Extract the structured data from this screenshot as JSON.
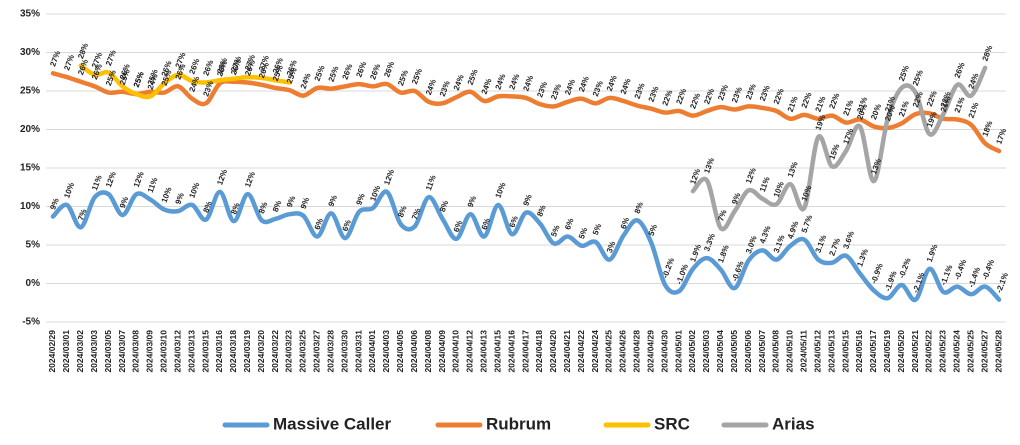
{
  "chart_data": {
    "type": "line",
    "categories": [
      "2024/02/29",
      "2024/03/01",
      "2024/03/02",
      "2024/03/03",
      "2024/03/05",
      "2024/03/07",
      "2024/03/08",
      "2024/03/09",
      "2024/03/10",
      "2024/03/12",
      "2024/03/13",
      "2024/03/15",
      "2024/03/16",
      "2024/03/18",
      "2024/03/19",
      "2024/03/20",
      "2024/03/22",
      "2024/03/23",
      "2024/03/25",
      "2024/03/27",
      "2024/03/28",
      "2024/03/30",
      "2024/03/31",
      "2024/04/01",
      "2024/04/03",
      "2024/04/05",
      "2024/04/06",
      "2024/04/08",
      "2024/04/09",
      "2024/04/10",
      "2024/04/12",
      "2024/04/13",
      "2024/04/15",
      "2024/04/16",
      "2024/04/17",
      "2024/04/18",
      "2024/04/20",
      "2024/04/21",
      "2024/04/22",
      "2024/04/24",
      "2024/04/25",
      "2024/04/26",
      "2024/04/28",
      "2024/04/29",
      "2024/04/30",
      "2024/05/01",
      "2024/05/02",
      "2024/05/03",
      "2024/05/04",
      "2024/05/05",
      "2024/05/06",
      "2024/05/07",
      "2024/05/08",
      "2024/05/10",
      "2024/05/11",
      "2024/05/12",
      "2024/05/13",
      "2024/05/15",
      "2024/05/16",
      "2024/05/17",
      "2024/05/19",
      "2024/05/20",
      "2024/05/21",
      "2024/05/22",
      "2024/05/23",
      "2024/05/24",
      "2024/05/25",
      "2024/05/27",
      "2024/05/28"
    ],
    "series": [
      {
        "name": "Massive Caller",
        "color": "#5b9bd5",
        "values": [
          8.7,
          10.2,
          7.3,
          11.2,
          11.6,
          8.9,
          11.6,
          10.9,
          9.6,
          9.4,
          10.2,
          8.3,
          11.9,
          8.1,
          11.6,
          8.2,
          8.4,
          9.0,
          8.8,
          6.1,
          9.1,
          5.9,
          9.3,
          9.8,
          11.9,
          7.7,
          7.4,
          11.2,
          8.4,
          5.8,
          9.0,
          6.1,
          10.2,
          6.4,
          9.2,
          7.8,
          5.2,
          6.1,
          4.9,
          5.4,
          3.1,
          6.2,
          8.2,
          5.3,
          -0.2,
          -1.0,
          1.9,
          3.3,
          1.8,
          -0.6,
          3.0,
          4.3,
          3.1,
          4.9,
          5.7,
          3.1,
          2.7,
          3.6,
          1.3,
          -0.9,
          -1.9,
          -0.2,
          -2.1,
          1.9,
          -1.1,
          -0.4,
          -1.4,
          -0.4,
          -2.1
        ],
        "value_labels": [
          "9%",
          "10%",
          "7%",
          "11%",
          "12%",
          "9%",
          "12%",
          "11%",
          "10%",
          "9%",
          "10%",
          "8%",
          "12%",
          "8%",
          "12%",
          "8%",
          "8%",
          "9%",
          "9%",
          "6%",
          "9%",
          "6%",
          "9%",
          "10%",
          "12%",
          "8%",
          "7%",
          "11%",
          "8%",
          "6%",
          "9%",
          "6%",
          "10%",
          "6%",
          "9%",
          "8%",
          "5%",
          "6%",
          "5%",
          "5%",
          "3%",
          "6%",
          "8%",
          "5%",
          "-0.2%",
          "-1.0%",
          "1.9%",
          "3.3%",
          "1.8%",
          "-0.6%",
          "3.0%",
          "4.3%",
          "3.1%",
          "4.9%",
          "5.7%",
          "3.1%",
          "2.7%",
          "3.6%",
          "1.3%",
          "-0.9%",
          "-1.9%",
          "-0.2%",
          "-2.1%",
          "1.9%",
          "-1.1%",
          "-0.4%",
          "-1.4%",
          "-0.4%",
          "-2.1%"
        ]
      },
      {
        "name": "Rubrum",
        "color": "#ed7d31",
        "values": [
          27.3,
          26.8,
          26.2,
          25.6,
          24.8,
          24.9,
          24.6,
          24.9,
          24.8,
          25.6,
          24.0,
          23.4,
          26.0,
          26.2,
          26.1,
          25.8,
          25.4,
          25.1,
          24.4,
          25.4,
          25.3,
          25.6,
          25.9,
          25.6,
          25.9,
          24.8,
          25.0,
          23.6,
          23.4,
          24.2,
          24.9,
          23.7,
          24.3,
          24.3,
          24.1,
          23.3,
          23.0,
          23.6,
          24.0,
          23.4,
          24.1,
          23.7,
          23.1,
          22.7,
          22.2,
          22.4,
          21.8,
          22.4,
          22.9,
          22.6,
          23.0,
          22.8,
          22.4,
          21.4,
          21.9,
          21.4,
          21.8,
          20.9,
          21.3,
          20.4,
          20.2,
          20.8,
          22.0,
          22.1,
          21.4,
          21.3,
          20.6,
          18.2,
          17.2
        ],
        "value_labels": [
          "27%",
          "27%",
          "26%",
          "26%",
          "25%",
          "25%",
          "25%",
          "25%",
          "25%",
          "26%",
          "24%",
          "23%",
          "26%",
          "26%",
          "26%",
          "26%",
          "25%",
          "25%",
          "24%",
          "25%",
          "25%",
          "26%",
          "26%",
          "26%",
          "26%",
          "25%",
          "25%",
          "24%",
          "23%",
          "24%",
          "25%",
          "24%",
          "24%",
          "24%",
          "24%",
          "23%",
          "23%",
          "24%",
          "24%",
          "23%",
          "24%",
          "24%",
          "23%",
          "23%",
          "22%",
          "22%",
          "22%",
          "22%",
          "23%",
          "23%",
          "23%",
          "23%",
          "22%",
          "21%",
          "22%",
          "21%",
          "22%",
          "21%",
          "21%",
          "20%",
          "20%",
          "21%",
          "22%",
          "22%",
          "21%",
          "21%",
          "21%",
          "18%",
          "17%"
        ]
      },
      {
        "name": "SRC",
        "color": "#ffc000",
        "values": [
          null,
          null,
          28.3,
          27.1,
          27.4,
          25.6,
          24.6,
          24.3,
          26.0,
          27.1,
          26.3,
          26.1,
          26.4,
          26.6,
          26.8,
          26.7,
          26.4,
          26.1,
          null,
          null,
          null,
          null,
          null,
          null,
          null,
          null,
          null,
          null,
          null,
          null,
          null,
          null,
          null,
          null,
          null,
          null,
          null,
          null,
          null,
          null,
          null,
          null,
          null,
          null,
          null,
          null,
          null,
          null,
          null,
          null,
          null,
          null,
          null,
          null,
          null,
          null,
          null,
          null,
          null,
          null,
          null,
          null,
          null,
          null,
          null,
          null,
          null,
          null,
          null
        ],
        "value_labels": [
          null,
          null,
          "28%",
          "27%",
          "27%",
          "26%",
          "25%",
          "24%",
          "26%",
          "27%",
          "26%",
          "26%",
          "26%",
          "27%",
          "27%",
          "27%",
          "26%",
          "26%",
          null,
          null,
          null,
          null,
          null,
          null,
          null,
          null,
          null,
          null,
          null,
          null,
          null,
          null,
          null,
          null,
          null,
          null,
          null,
          null,
          null,
          null,
          null,
          null,
          null,
          null,
          null,
          null,
          null,
          null,
          null,
          null,
          null,
          null,
          null,
          null,
          null,
          null,
          null,
          null,
          null,
          null,
          null,
          null,
          null,
          null,
          null,
          null,
          null,
          null,
          null
        ]
      },
      {
        "name": "Arias",
        "color": "#a5a5a5",
        "values": [
          null,
          null,
          null,
          null,
          null,
          null,
          null,
          null,
          null,
          null,
          null,
          null,
          null,
          null,
          null,
          null,
          null,
          null,
          null,
          null,
          null,
          null,
          null,
          null,
          null,
          null,
          null,
          null,
          null,
          null,
          null,
          null,
          null,
          null,
          null,
          null,
          null,
          null,
          null,
          null,
          null,
          null,
          null,
          null,
          null,
          null,
          12.0,
          13.4,
          7.2,
          9.4,
          12.1,
          11.0,
          10.3,
          12.9,
          9.8,
          19.0,
          15.2,
          17.2,
          20.4,
          13.3,
          21.4,
          25.4,
          24.8,
          19.4,
          22.0,
          25.8,
          24.4,
          28.0,
          null
        ],
        "value_labels": [
          null,
          null,
          null,
          null,
          null,
          null,
          null,
          null,
          null,
          null,
          null,
          null,
          null,
          null,
          null,
          null,
          null,
          null,
          null,
          null,
          null,
          null,
          null,
          null,
          null,
          null,
          null,
          null,
          null,
          null,
          null,
          null,
          null,
          null,
          null,
          null,
          null,
          null,
          null,
          null,
          null,
          null,
          null,
          null,
          null,
          null,
          "12%",
          "13%",
          "7%",
          "9%",
          "12%",
          "11%",
          "10%",
          "13%",
          "10%",
          "19%",
          "15%",
          "17%",
          "20%",
          "13%",
          "21%",
          "25%",
          "25%",
          "19%",
          "22%",
          "26%",
          "24%",
          "28%",
          null
        ]
      }
    ],
    "ylim": [
      -5,
      35
    ],
    "yticks": [
      {
        "value": -5,
        "label": "-5%"
      },
      {
        "value": 0,
        "label": "0%"
      },
      {
        "value": 5,
        "label": "5%"
      },
      {
        "value": 10,
        "label": "10%"
      },
      {
        "value": 15,
        "label": "15%"
      },
      {
        "value": 20,
        "label": "20%"
      },
      {
        "value": 25,
        "label": "25%"
      },
      {
        "value": 30,
        "label": "30%"
      },
      {
        "value": 35,
        "label": "35%"
      }
    ],
    "grid": true,
    "legend": "bottom"
  }
}
